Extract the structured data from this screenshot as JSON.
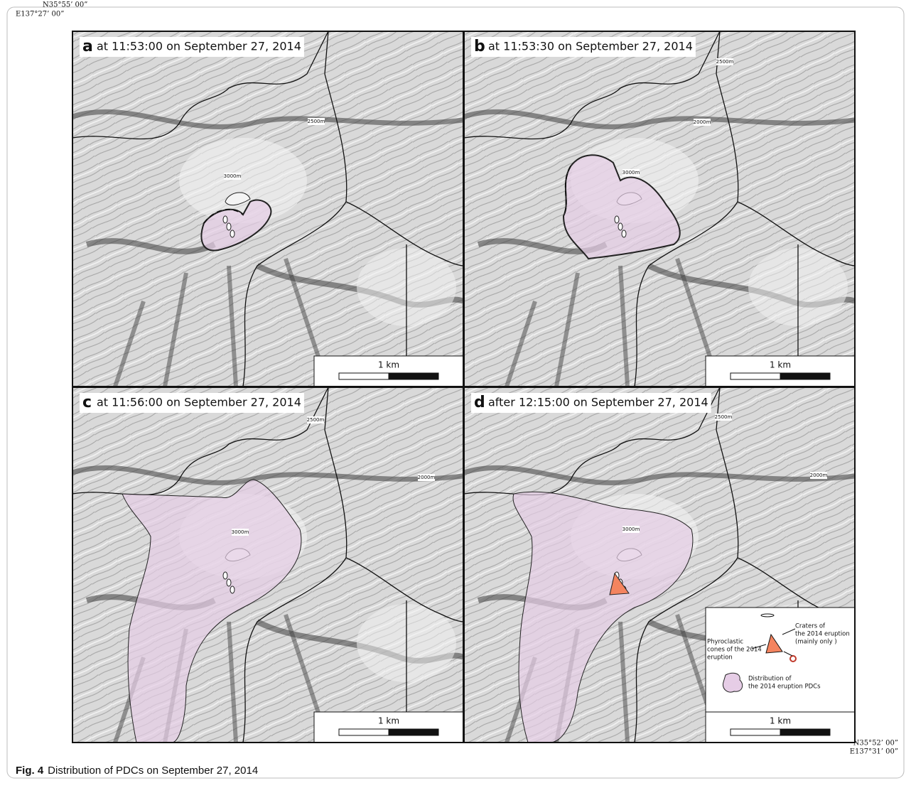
{
  "coords": {
    "top_lat": "N35°55’ 00”",
    "left_lon": "E137°27’ 00”",
    "bottom_lat": "N35°52’ 00”",
    "right_lon": "E137°31’ 00”"
  },
  "panels": [
    {
      "letter": "a",
      "title": "at 11:53:00 on September 27, 2014",
      "contours": [
        "3000m",
        "2500m"
      ],
      "scale": "1 km"
    },
    {
      "letter": "b",
      "title": "at 11:53:30 on September 27, 2014",
      "contours": [
        "3000m",
        "2500m",
        "2000m"
      ],
      "scale": "1 km"
    },
    {
      "letter": "c",
      "title": "at 11:56:00 on September 27, 2014",
      "contours": [
        "3000m",
        "2500m",
        "2000m"
      ],
      "scale": "1 km"
    },
    {
      "letter": "d",
      "title": "after 12:15:00 on September 27, 2014",
      "contours": [
        "3000m",
        "2500m",
        "2000m"
      ],
      "scale": "1 km"
    }
  ],
  "legend": {
    "craters": [
      "Craters of",
      "the 2014 eruption",
      "(mainly only )"
    ],
    "cones": [
      "Phyroclastic",
      "cones of the 2014",
      "eruption"
    ],
    "pdc": [
      "Distribution of",
      "the 2014 eruption PDCs"
    ]
  },
  "caption": {
    "label": "Fig. 4",
    "text": "Distribution of PDCs on September 27, 2014"
  }
}
